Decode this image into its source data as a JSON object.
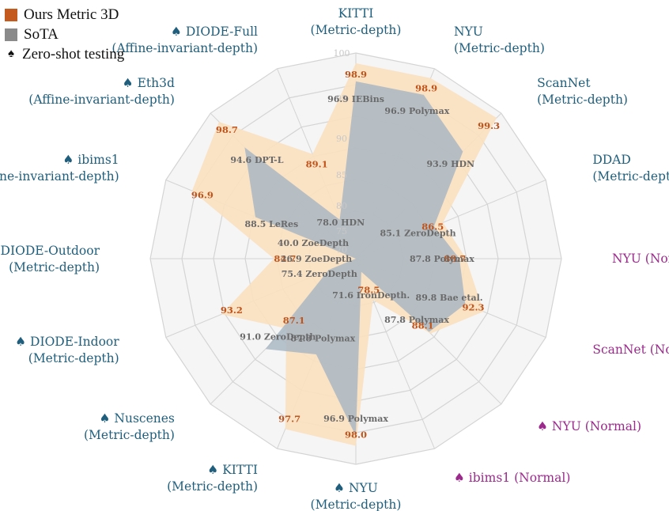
{
  "legend": {
    "ours_label": "Ours Metric 3D",
    "sota_label": "SoTA",
    "zero_shot_label": "Zero-shot testing"
  },
  "colors": {
    "ours_fill": "#fbe0bf",
    "ours_text": "#c0541b",
    "ours_swatch": "#c55a1e",
    "sota_fill": "#a9b7c3",
    "sota_text": "#6a6a6a",
    "sota_swatch": "#8a8a8a",
    "depth_label": "#1f5f7d",
    "normal_label": "#9b2a8c",
    "grid": "#d4d4d4",
    "tick": "#c8c8c8"
  },
  "chart_data": {
    "type": "radar",
    "radial_ticks": [
      "100",
      "95",
      "90",
      "85",
      "80",
      "75",
      "70"
    ],
    "axes": [
      {
        "name": "KITTI",
        "task": "(Metric-depth)",
        "zero_shot": false,
        "kind": "depth",
        "ours": 98.9,
        "sota": 96.9,
        "sota_method": "IEBins"
      },
      {
        "name": "NYU",
        "task": "(Metric-depth)",
        "zero_shot": false,
        "kind": "depth",
        "ours": 98.9,
        "sota": 96.9,
        "sota_method": "Polymax"
      },
      {
        "name": "ScanNet",
        "task": "(Metric-depth)",
        "zero_shot": false,
        "kind": "depth",
        "ours": 99.3,
        "sota": 93.9,
        "sota_method": "HDN"
      },
      {
        "name": "DDAD",
        "task": "(Metric-depth)",
        "zero_shot": false,
        "kind": "depth",
        "ours": 86.5,
        "sota": 85.1,
        "sota_method": "ZeroDepth"
      },
      {
        "name": "NYU (Normal)",
        "task": "",
        "zero_shot": false,
        "kind": "normal",
        "ours": 88.7,
        "sota": 87.8,
        "sota_method": "Polymax"
      },
      {
        "name": "ScanNet (Normal)",
        "task": "",
        "zero_shot": false,
        "kind": "normal",
        "ours": 92.3,
        "sota": 89.8,
        "sota_method": "Bae etal."
      },
      {
        "name": "NYU (Normal)",
        "task": "",
        "zero_shot": true,
        "kind": "normal",
        "ours": 88.1,
        "sota": 87.8,
        "sota_method": "Polymax"
      },
      {
        "name": "ibims1 (Normal)",
        "task": "",
        "zero_shot": true,
        "kind": "normal",
        "ours": 78.5,
        "sota": 71.6,
        "sota_method": "IronDepth."
      },
      {
        "name": "NYU",
        "task": "(Metric-depth)",
        "zero_shot": true,
        "kind": "depth",
        "ours": 98.0,
        "sota": 96.9,
        "sota_method": "Polymax"
      },
      {
        "name": "KITTI",
        "task": "(Metric-depth)",
        "zero_shot": true,
        "kind": "depth",
        "ours": 97.7,
        "sota": 87.8,
        "sota_method": "Polymax"
      },
      {
        "name": "Nuscenes",
        "task": "(Metric-depth)",
        "zero_shot": true,
        "kind": "depth",
        "ours": 87.1,
        "sota": 91.0,
        "sota_method": "ZeroDepth"
      },
      {
        "name": "DIODE-Indoor",
        "task": "(Metric-depth)",
        "zero_shot": true,
        "kind": "depth",
        "ours": 93.2,
        "sota": 75.4,
        "sota_method": "ZeroDepth"
      },
      {
        "name": "DIODE-Outdoor",
        "task": "(Metric-depth)",
        "zero_shot": true,
        "kind": "depth",
        "ours": 84.7,
        "sota": 26.9,
        "sota_method": "ZoeDepth"
      },
      {
        "name": "ibims1",
        "task": "(Affine-invariant-depth)",
        "zero_shot": true,
        "kind": "depth",
        "ours": 96.9,
        "sota": 88.5,
        "sota_method": "LeRes"
      },
      {
        "name": "Eth3d",
        "task": "(Affine-invariant-depth)",
        "zero_shot": true,
        "kind": "depth",
        "ours": 98.7,
        "sota": 94.6,
        "sota_method": "DPT-L"
      },
      {
        "name": "DIODE-Full",
        "task": "(Affine-invariant-depth)",
        "zero_shot": true,
        "kind": "depth",
        "ours": 89.1,
        "sota": 78.0,
        "sota_method": "HDN"
      },
      {
        "name": "",
        "task": "",
        "zero_shot": false,
        "kind": "hidden",
        "ours": 0,
        "sota": 0,
        "sota_method": "",
        "note_sota_extra": "40.0 ZoeDepth"
      }
    ]
  }
}
